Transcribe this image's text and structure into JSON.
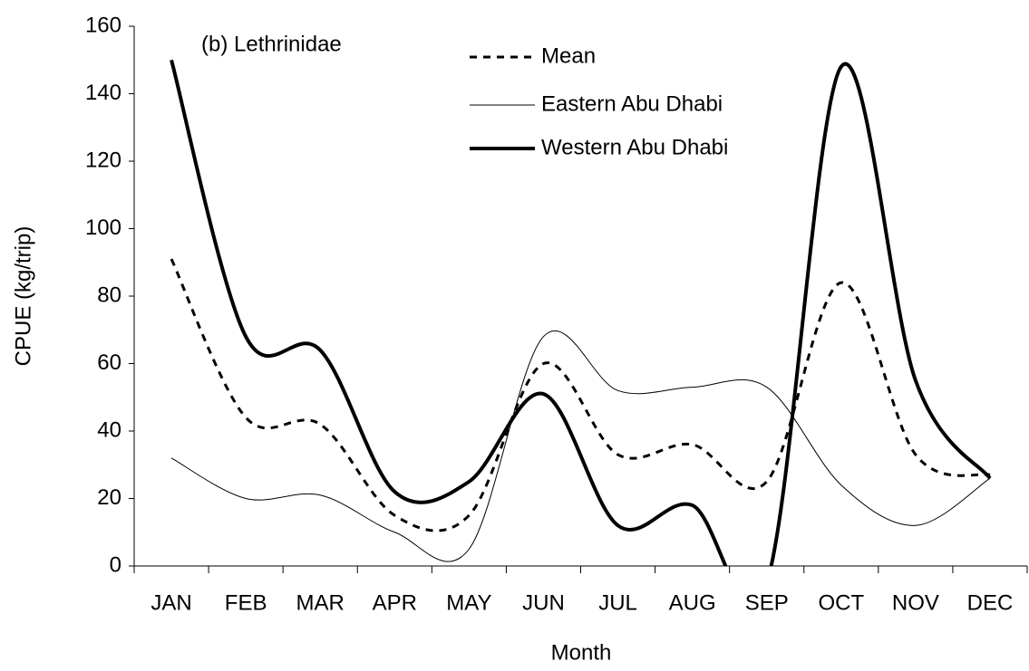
{
  "chart_data": {
    "type": "line",
    "annotation": "(b) Lethrinidae",
    "x_label": "Month",
    "y_label": "CPUE (kg/trip)",
    "categories": [
      "JAN",
      "FEB",
      "MAR",
      "APR",
      "MAY",
      "JUN",
      "JUL",
      "AUG",
      "SEP",
      "OCT",
      "NOV",
      "DEC"
    ],
    "series": [
      {
        "name": "Mean",
        "color": "#000000",
        "style": "dashed",
        "width": 3,
        "values": [
          91,
          44,
          42,
          15,
          15,
          60,
          33,
          36,
          25,
          84,
          33,
          27
        ]
      },
      {
        "name": "Eastern Abu Dhabi",
        "color": "#000000",
        "style": "solid",
        "width": 1,
        "values": [
          32,
          20,
          21,
          10,
          5,
          68,
          52,
          53,
          53,
          24,
          12,
          26
        ]
      },
      {
        "name": "Western Abu Dhabi",
        "color": "#000000",
        "style": "solid",
        "width": 4,
        "values": [
          150,
          68,
          64,
          22,
          25,
          51,
          12,
          18,
          -5,
          148,
          55,
          26
        ]
      }
    ],
    "ylim": [
      0,
      160
    ],
    "yticks": [
      0,
      20,
      40,
      60,
      80,
      100,
      120,
      140,
      160
    ],
    "smooth": true,
    "grid": false
  }
}
